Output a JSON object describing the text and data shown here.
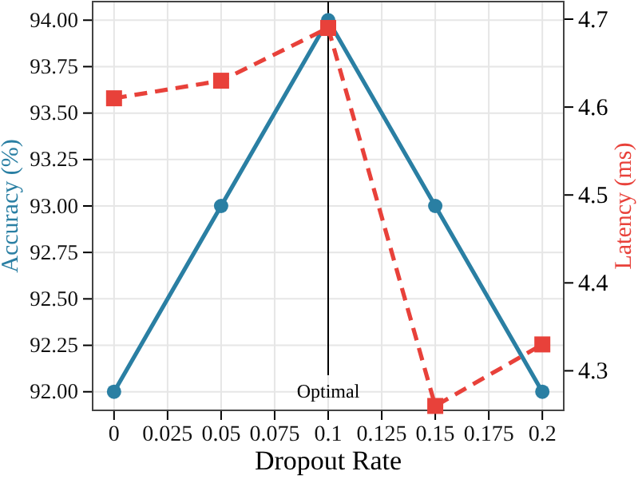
{
  "chart_data": {
    "type": "line",
    "x": [
      0,
      0.05,
      0.1,
      0.15,
      0.2
    ],
    "series": [
      {
        "color": "#2a7fa3",
        "values": [
          92.0,
          93.0,
          94.0,
          93.0,
          92.0
        ],
        "marker": "circle",
        "line_style": "solid"
      },
      {
        "color": "#e8413a",
        "values": [
          4.61,
          4.63,
          4.69,
          4.26,
          4.33
        ],
        "axis": "y2",
        "marker": "square",
        "line_style": "dashed"
      }
    ],
    "xlabel": "Dropout Rate",
    "ylabel": "Accuracy (%)",
    "y2label": "Latency (ms)",
    "xlim": [
      -0.01,
      0.21
    ],
    "xticks": [
      0,
      0.025,
      0.05,
      0.075,
      0.1,
      0.125,
      0.15,
      0.175,
      0.2
    ],
    "ylim": [
      91.9,
      94.1
    ],
    "yticks": [
      {
        "value": 92,
        "label": "92.00"
      },
      {
        "value": 92.25,
        "label": "92.25"
      },
      {
        "value": 92.5,
        "label": "92.50"
      },
      {
        "value": 92.75,
        "label": "92.75"
      },
      {
        "value": 93,
        "label": "93.00"
      },
      {
        "value": 93.25,
        "label": "93.25"
      },
      {
        "value": 93.5,
        "label": "93.50"
      },
      {
        "value": 93.75,
        "label": "93.75"
      },
      {
        "value": 94,
        "label": "94.00"
      }
    ],
    "y2lim": [
      4.255,
      4.72
    ],
    "y2ticks": [
      4.3,
      4.4,
      4.5,
      4.6,
      4.7
    ],
    "ref_lines": [
      {
        "axis": "x",
        "value": 0.1,
        "label": "Optimal",
        "color": "#000000"
      }
    ],
    "grid": true
  }
}
